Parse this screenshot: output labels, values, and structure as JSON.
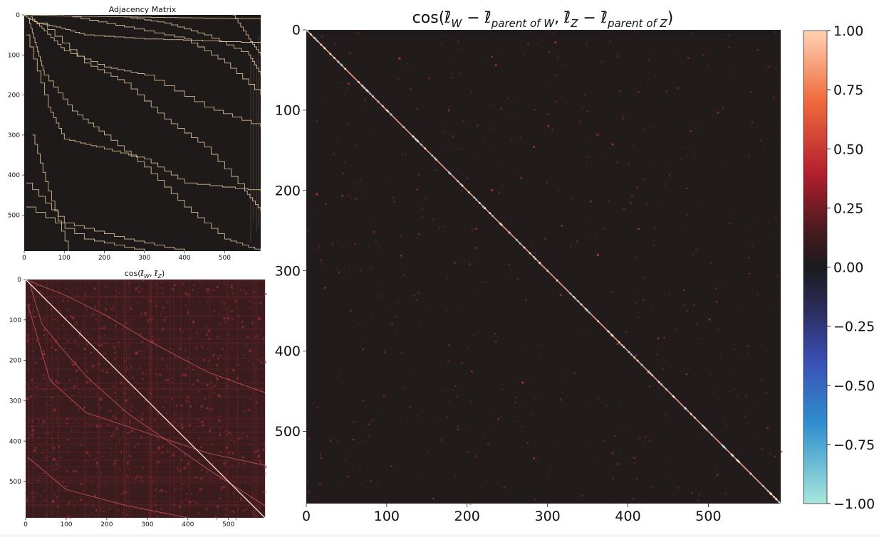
{
  "chart_data": [
    {
      "type": "heatmap",
      "title": "Adjacency Matrix",
      "x_ticks": [
        0,
        100,
        200,
        300,
        400,
        500
      ],
      "y_ticks": [
        0,
        100,
        200,
        300,
        400,
        500
      ],
      "xlim": [
        0,
        590
      ],
      "ylim": [
        0,
        590
      ],
      "description": "binary 0/1 matrix with staircase bands",
      "colors": {
        "background": "#1f1a1a",
        "mark": "#f1d2a8"
      }
    },
    {
      "type": "heatmap",
      "title": "cos(ℓ̄",
      "title_sub1": "W",
      "title_sep": ", ℓ̄",
      "title_sub2": "Z",
      "title_end": ")",
      "x_ticks": [
        0,
        100,
        200,
        300,
        400,
        500
      ],
      "y_ticks": [
        0,
        100,
        200,
        300,
        400,
        500
      ],
      "xlim": [
        0,
        590
      ],
      "ylim": [
        0,
        590
      ],
      "colors": {
        "background": "#3a1c1f",
        "mark": "#d9485a"
      }
    },
    {
      "type": "heatmap",
      "title_a": "cos(ℓ̄",
      "title_sub1": "W",
      "title_b": " − ℓ̄",
      "title_sub2": "parent of W",
      "title_c": ", ℓ̄",
      "title_sub3": "Z",
      "title_d": " − ℓ̄",
      "title_sub4": "parent of Z",
      "title_e": ")",
      "x_ticks": [
        0,
        100,
        200,
        300,
        400,
        500
      ],
      "y_ticks": [
        0,
        100,
        200,
        300,
        400,
        500
      ],
      "xlim": [
        0,
        590
      ],
      "ylim": [
        0,
        590
      ],
      "colorbar": {
        "range": [
          -1.0,
          1.0
        ],
        "ticks": [
          "1.00",
          "0.75",
          "0.50",
          "0.25",
          "0.00",
          "−0.25",
          "−0.50",
          "−0.75",
          "−1.00"
        ],
        "ticks_numeric": [
          1.0,
          0.75,
          0.5,
          0.25,
          0.0,
          -0.25,
          -0.5,
          -0.75,
          -1.0
        ]
      },
      "colors": {
        "background": "#221b1c",
        "diagonal": "#f4b79a"
      }
    }
  ]
}
